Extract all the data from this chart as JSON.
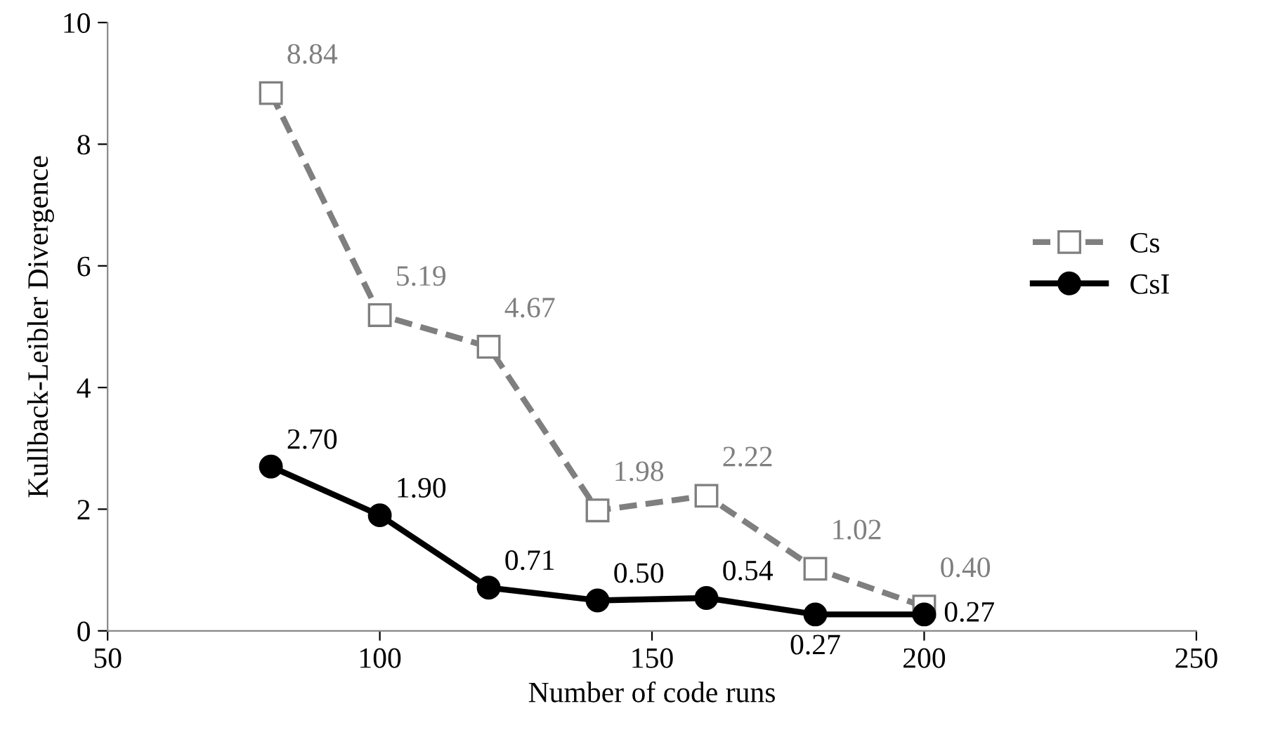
{
  "chart_data": {
    "type": "line",
    "xlabel": "Number of code runs",
    "ylabel": "Kullback-Leibler Divergence",
    "x": [
      80,
      100,
      120,
      140,
      160,
      180,
      200
    ],
    "xlim": [
      50,
      250
    ],
    "xticks": [
      50,
      100,
      150,
      200,
      250
    ],
    "ylim": [
      0,
      10
    ],
    "yticks": [
      0,
      2,
      4,
      6,
      8,
      10
    ],
    "grid": false,
    "legend": "right",
    "series": [
      {
        "name": "Cs",
        "color": "#7f7f7f",
        "marker": "square",
        "line_style": "dashed",
        "values": [
          8.84,
          5.19,
          4.67,
          1.98,
          2.22,
          1.02,
          0.4
        ],
        "value_labels": [
          "8.84",
          "5.19",
          "4.67",
          "1.98",
          "2.22",
          "1.02",
          "0.40"
        ]
      },
      {
        "name": "CsI",
        "color": "#000000",
        "marker": "circle",
        "line_style": "solid",
        "values": [
          2.7,
          1.9,
          0.71,
          0.5,
          0.54,
          0.27,
          0.27
        ],
        "value_labels": [
          "2.70",
          "1.90",
          "0.71",
          "0.50",
          "0.54",
          "0.27",
          "0.27"
        ]
      }
    ]
  }
}
